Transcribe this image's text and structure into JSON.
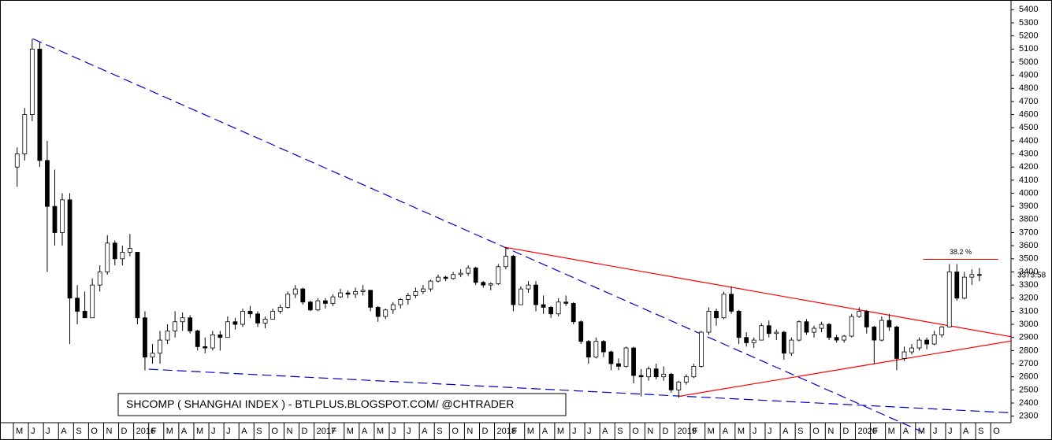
{
  "chart_data": {
    "type": "candlestick",
    "annotation": "SHCOMP ( SHANGHAI INDEX ) - BTLPLUS.BLOGSPOT.COM/ @CHTRADER",
    "categories": [
      "M",
      "J",
      "J",
      "A",
      "S",
      "O",
      "N",
      "D",
      "2016",
      "F",
      "M",
      "A",
      "M",
      "J",
      "J",
      "A",
      "S",
      "O",
      "N",
      "D",
      "2017",
      "F",
      "M",
      "A",
      "M",
      "J",
      "J",
      "A",
      "S",
      "O",
      "N",
      "D",
      "2018",
      "F",
      "M",
      "A",
      "M",
      "J",
      "J",
      "A",
      "S",
      "O",
      "N",
      "D",
      "2019",
      "F",
      "M",
      "A",
      "M",
      "J",
      "J",
      "A",
      "S",
      "O",
      "N",
      "D",
      "2020",
      "F",
      "M",
      "A",
      "M",
      "J",
      "J",
      "A",
      "S",
      "O"
    ],
    "ylim": [
      2250,
      5450
    ],
    "yticks": [
      2300,
      2400,
      2500,
      2600,
      2700,
      2800,
      2900,
      3000,
      3100,
      3200,
      3300,
      3400,
      3500,
      3600,
      3700,
      3800,
      3900,
      4000,
      4100,
      4200,
      4300,
      4400,
      4500,
      4600,
      4700,
      4800,
      4900,
      5000,
      5100,
      5200,
      5300,
      5400
    ],
    "up_color": "#ffffff",
    "down_color": "#000000",
    "ohlc": [
      [
        4200,
        4350,
        4050,
        4300
      ],
      [
        4300,
        4650,
        4250,
        4600
      ],
      [
        4600,
        5178,
        4550,
        5100
      ],
      [
        5100,
        5150,
        4200,
        4250
      ],
      [
        4250,
        4400,
        3400,
        3900
      ],
      [
        3900,
        4180,
        3600,
        3700
      ],
      [
        3700,
        4000,
        3600,
        3950
      ],
      [
        3950,
        4000,
        2850,
        3200
      ],
      [
        3200,
        3300,
        3000,
        3100
      ],
      [
        3100,
        3250,
        3050,
        3050
      ],
      [
        3050,
        3350,
        3050,
        3300
      ],
      [
        3300,
        3450,
        3250,
        3400
      ],
      [
        3400,
        3680,
        3380,
        3620
      ],
      [
        3620,
        3640,
        3450,
        3500
      ],
      [
        3500,
        3600,
        3450,
        3550
      ],
      [
        3550,
        3690,
        3520,
        3580
      ],
      [
        3550,
        3550,
        3000,
        3050
      ],
      [
        3050,
        3100,
        2650,
        2750
      ],
      [
        2750,
        2850,
        2700,
        2780
      ],
      [
        2780,
        2950,
        2700,
        2880
      ],
      [
        2880,
        3000,
        2850,
        2950
      ],
      [
        2950,
        3100,
        2900,
        3020
      ],
      [
        3020,
        3090,
        2950,
        3050
      ],
      [
        3050,
        3070,
        2930,
        2950
      ],
      [
        2950,
        2960,
        2800,
        2830
      ],
      [
        2830,
        2900,
        2780,
        2820
      ],
      [
        2820,
        2950,
        2800,
        2920
      ],
      [
        2920,
        2950,
        2800,
        2900
      ],
      [
        2900,
        3060,
        2900,
        3020
      ],
      [
        3020,
        3050,
        2960,
        3000
      ],
      [
        3000,
        3120,
        2980,
        3100
      ],
      [
        3100,
        3140,
        3050,
        3080
      ],
      [
        3080,
        3100,
        2980,
        3010
      ],
      [
        3010,
        3060,
        2970,
        3040
      ],
      [
        3040,
        3120,
        3040,
        3100
      ],
      [
        3100,
        3150,
        3080,
        3130
      ],
      [
        3130,
        3250,
        3120,
        3230
      ],
      [
        3230,
        3300,
        3200,
        3270
      ],
      [
        3270,
        3280,
        3150,
        3170
      ],
      [
        3170,
        3180,
        3100,
        3110
      ],
      [
        3110,
        3200,
        3100,
        3180
      ],
      [
        3180,
        3200,
        3120,
        3160
      ],
      [
        3160,
        3230,
        3140,
        3210
      ],
      [
        3210,
        3270,
        3200,
        3240
      ],
      [
        3240,
        3260,
        3200,
        3230
      ],
      [
        3230,
        3280,
        3200,
        3250
      ],
      [
        3250,
        3300,
        3220,
        3260
      ],
      [
        3260,
        3260,
        3100,
        3130
      ],
      [
        3130,
        3140,
        3020,
        3060
      ],
      [
        3060,
        3120,
        3040,
        3110
      ],
      [
        3110,
        3170,
        3080,
        3150
      ],
      [
        3150,
        3200,
        3120,
        3190
      ],
      [
        3190,
        3240,
        3150,
        3220
      ],
      [
        3220,
        3280,
        3200,
        3250
      ],
      [
        3250,
        3300,
        3230,
        3270
      ],
      [
        3270,
        3340,
        3250,
        3330
      ],
      [
        3330,
        3380,
        3320,
        3360
      ],
      [
        3360,
        3370,
        3330,
        3350
      ],
      [
        3350,
        3400,
        3340,
        3380
      ],
      [
        3380,
        3420,
        3360,
        3390
      ],
      [
        3390,
        3450,
        3370,
        3430
      ],
      [
        3430,
        3440,
        3300,
        3320
      ],
      [
        3320,
        3330,
        3280,
        3300
      ],
      [
        3300,
        3320,
        3260,
        3310
      ],
      [
        3310,
        3460,
        3300,
        3440
      ],
      [
        3440,
        3590,
        3420,
        3520
      ],
      [
        3520,
        3530,
        3100,
        3150
      ],
      [
        3150,
        3290,
        3150,
        3270
      ],
      [
        3270,
        3330,
        3240,
        3300
      ],
      [
        3300,
        3330,
        3100,
        3150
      ],
      [
        3150,
        3220,
        3080,
        3130
      ],
      [
        3130,
        3140,
        3050,
        3080
      ],
      [
        3080,
        3200,
        3060,
        3170
      ],
      [
        3170,
        3220,
        3140,
        3160
      ],
      [
        3160,
        3170,
        3000,
        3020
      ],
      [
        3020,
        3030,
        2850,
        2870
      ],
      [
        2870,
        2880,
        2700,
        2750
      ],
      [
        2750,
        2900,
        2740,
        2870
      ],
      [
        2870,
        2880,
        2750,
        2790
      ],
      [
        2790,
        2800,
        2650,
        2700
      ],
      [
        2700,
        2740,
        2650,
        2680
      ],
      [
        2680,
        2830,
        2670,
        2820
      ],
      [
        2820,
        2830,
        2550,
        2610
      ],
      [
        2610,
        2660,
        2450,
        2600
      ],
      [
        2600,
        2680,
        2570,
        2660
      ],
      [
        2660,
        2700,
        2580,
        2600
      ],
      [
        2600,
        2680,
        2570,
        2620
      ],
      [
        2620,
        2630,
        2480,
        2500
      ],
      [
        2500,
        2570,
        2440,
        2560
      ],
      [
        2560,
        2620,
        2540,
        2600
      ],
      [
        2600,
        2700,
        2590,
        2680
      ],
      [
        2680,
        2950,
        2670,
        2940
      ],
      [
        2940,
        3130,
        2920,
        3100
      ],
      [
        3100,
        3120,
        2990,
        3050
      ],
      [
        3050,
        3250,
        3040,
        3230
      ],
      [
        3230,
        3290,
        3080,
        3100
      ],
      [
        3100,
        3110,
        2850,
        2900
      ],
      [
        2900,
        2940,
        2830,
        2860
      ],
      [
        2860,
        2900,
        2820,
        2880
      ],
      [
        2880,
        3010,
        2880,
        2990
      ],
      [
        2990,
        3030,
        2900,
        2930
      ],
      [
        2930,
        2960,
        2880,
        2940
      ],
      [
        2940,
        2950,
        2730,
        2780
      ],
      [
        2780,
        2900,
        2760,
        2880
      ],
      [
        2880,
        3030,
        2870,
        3020
      ],
      [
        3020,
        3040,
        2920,
        2940
      ],
      [
        2940,
        2990,
        2900,
        2970
      ],
      [
        2970,
        3020,
        2940,
        3000
      ],
      [
        3000,
        3010,
        2880,
        2900
      ],
      [
        2900,
        2920,
        2860,
        2880
      ],
      [
        2880,
        2920,
        2860,
        2910
      ],
      [
        2910,
        3080,
        2900,
        3060
      ],
      [
        3060,
        3130,
        3050,
        3100
      ],
      [
        3100,
        3110,
        2930,
        2980
      ],
      [
        2980,
        2990,
        2700,
        2880
      ],
      [
        2880,
        3060,
        2870,
        3030
      ],
      [
        3030,
        3080,
        2950,
        2980
      ],
      [
        2980,
        2990,
        2650,
        2740
      ],
      [
        2740,
        2830,
        2720,
        2790
      ],
      [
        2790,
        2850,
        2770,
        2820
      ],
      [
        2820,
        2900,
        2800,
        2880
      ],
      [
        2880,
        2900,
        2810,
        2850
      ],
      [
        2850,
        2950,
        2840,
        2920
      ],
      [
        2920,
        2990,
        2900,
        2980
      ],
      [
        2980,
        3460,
        2980,
        3400
      ],
      [
        3400,
        3460,
        3180,
        3200
      ],
      [
        3200,
        3400,
        3190,
        3360
      ],
      [
        3360,
        3420,
        3300,
        3380
      ],
      [
        3380,
        3430,
        3330,
        3373.58
      ]
    ],
    "last_price": {
      "value": 3373.58,
      "color": "#ff0000"
    },
    "trendlines": [
      {
        "color": "#0000cc",
        "dashed": true,
        "x": [
          1.3,
          60.5
        ],
        "values": [
          5178,
          2178
        ]
      },
      {
        "color": "#0000cc",
        "dashed": true,
        "x": [
          9,
          66.4
        ],
        "values": [
          2658,
          2325
        ]
      },
      {
        "color": "#ff0000",
        "dashed": false,
        "x": [
          32.6,
          66.4
        ],
        "values": [
          3590,
          2905
        ]
      },
      {
        "color": "#ff0000",
        "dashed": false,
        "x": [
          44.2,
          66.4
        ],
        "values": [
          2450,
          2874
        ]
      }
    ],
    "fib_level": {
      "label": "38.2 %",
      "value": 3496,
      "x": [
        60.5,
        65.5
      ],
      "color": "#ff0000"
    }
  }
}
